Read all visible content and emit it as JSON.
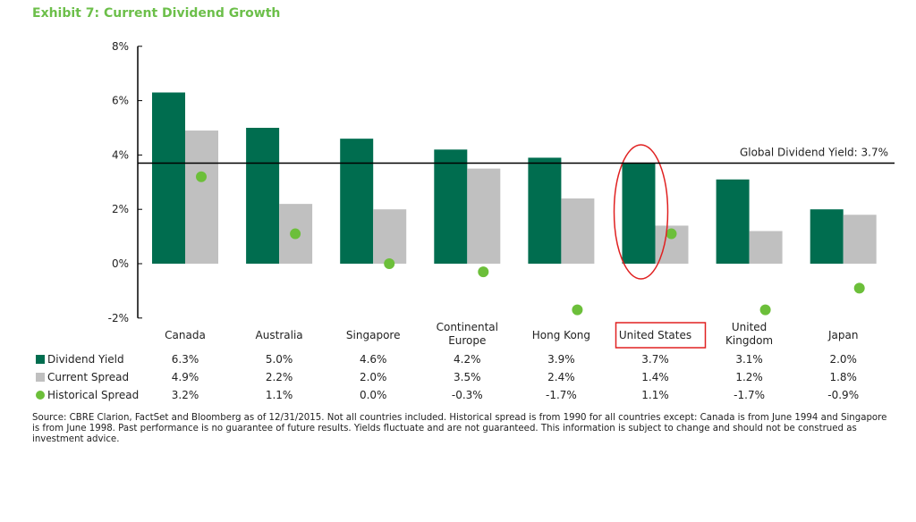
{
  "title": "Exhibit 7: Current Dividend Growth",
  "source": "Source:  CBRE Clarion, FactSet and Bloomberg as of 12/31/2015. Not all countries included. Historical spread is from 1990 for all countries except:  Canada is from June 1994 and Singapore is from June 1998. Past performance is no guarantee of future results.  Yields fluctuate and are not guaranteed.  This information is subject to change and should not be construed as investment advice.",
  "chart_data": {
    "type": "bar",
    "title": "Exhibit 7: Current Dividend Growth",
    "categories": [
      "Canada",
      "Australia",
      "Singapore",
      "Continental Europe",
      "Hong Kong",
      "United States",
      "United Kingdom",
      "Japan"
    ],
    "category_lines": [
      [
        "Canada"
      ],
      [
        "Australia"
      ],
      [
        "Singapore"
      ],
      [
        "Continental",
        "Europe"
      ],
      [
        "Hong Kong"
      ],
      [
        "United States"
      ],
      [
        "United",
        "Kingdom"
      ],
      [
        "Japan"
      ]
    ],
    "series": [
      {
        "name": "Dividend Yield",
        "type": "bar",
        "color": "#006d4f",
        "values": [
          6.3,
          5.0,
          4.6,
          4.2,
          3.9,
          3.7,
          3.1,
          2.0
        ],
        "labels": [
          "6.3%",
          "5.0%",
          "4.6%",
          "4.2%",
          "3.9%",
          "3.7%",
          "3.1%",
          "2.0%"
        ]
      },
      {
        "name": "Current Spread",
        "type": "bar",
        "color": "#c0c0c0",
        "values": [
          4.9,
          2.2,
          2.0,
          3.5,
          2.4,
          1.4,
          1.2,
          1.8
        ],
        "labels": [
          "4.9%",
          "2.2%",
          "2.0%",
          "3.5%",
          "2.4%",
          "1.4%",
          "1.2%",
          "1.8%"
        ]
      },
      {
        "name": "Historical Spread",
        "type": "scatter",
        "color": "#6cbf3a",
        "values": [
          3.2,
          1.1,
          0.0,
          -0.3,
          -1.7,
          1.1,
          -1.7,
          -0.9
        ],
        "labels": [
          "3.2%",
          "1.1%",
          "0.0%",
          "-0.3%",
          "-1.7%",
          "1.1%",
          "-1.7%",
          "-0.9%"
        ]
      }
    ],
    "ylim": [
      -2,
      8
    ],
    "yticks": [
      "-2%",
      "0%",
      "2%",
      "4%",
      "6%",
      "8%"
    ],
    "reference_line": {
      "value": 3.7,
      "label": "Global Dividend Yield:  3.7%"
    },
    "highlight": {
      "category": "United States",
      "color": "#e02020"
    },
    "grid": false,
    "legend": "bottom-left table"
  }
}
